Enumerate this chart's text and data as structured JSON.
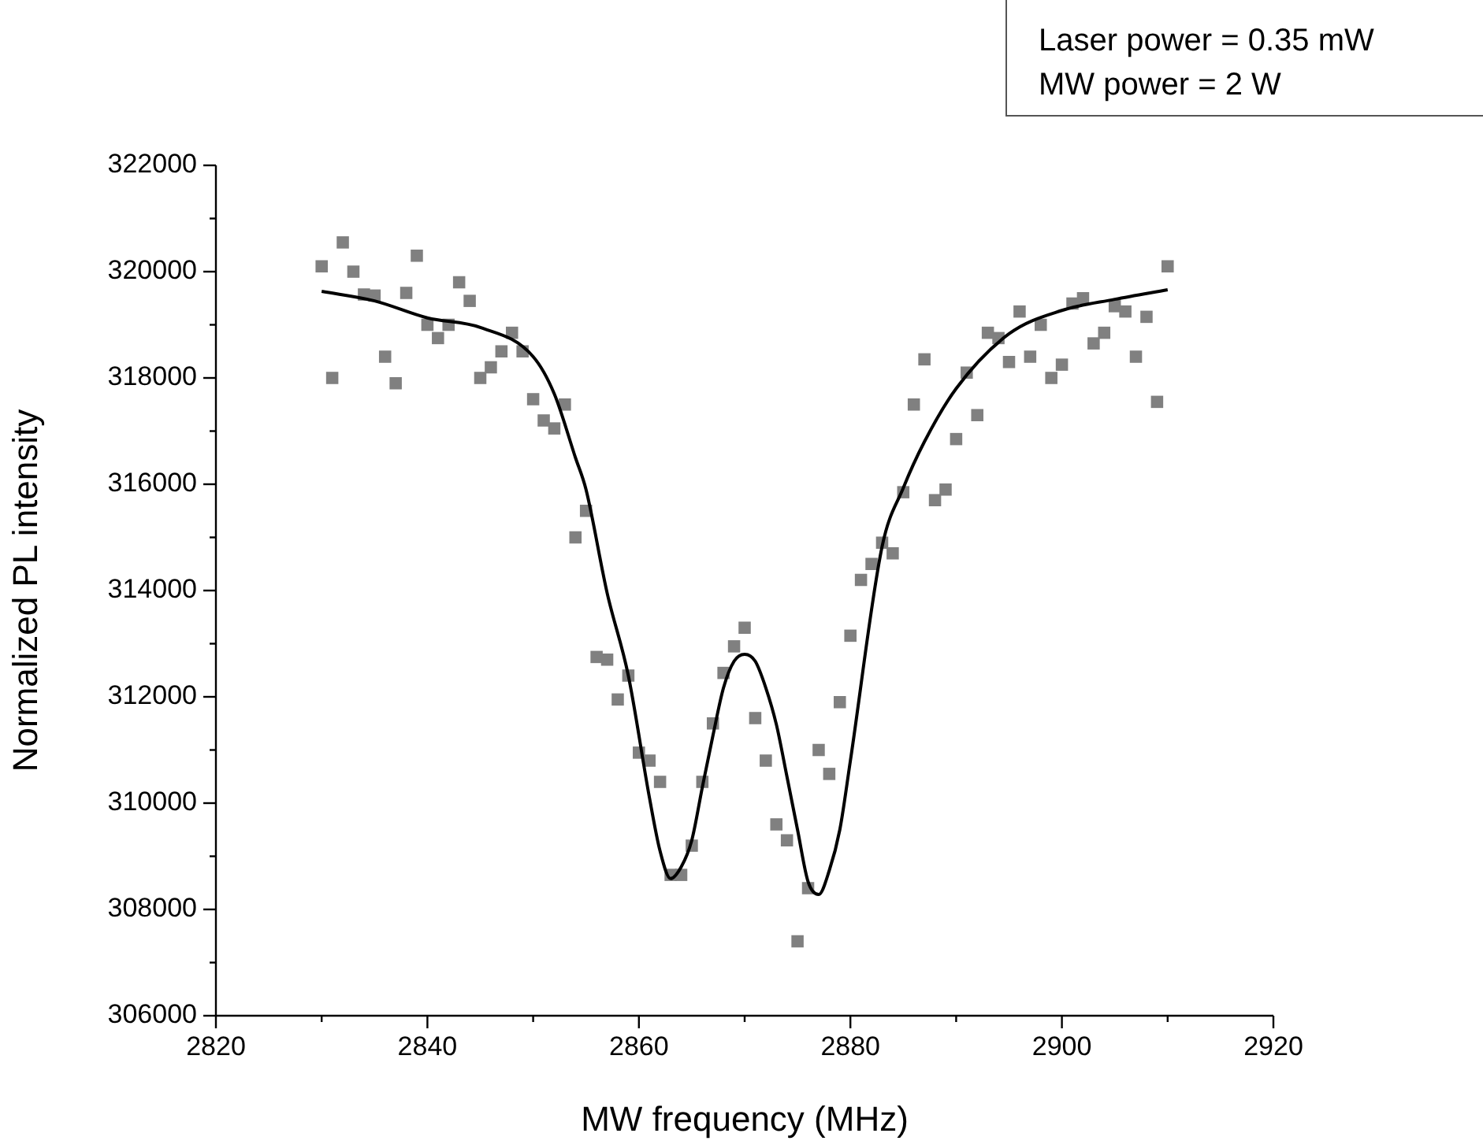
{
  "chart_data": {
    "type": "scatter",
    "xlabel": "MW frequency (MHz)",
    "ylabel": "Normalized PL intensity",
    "annotations": [
      "Laser power = 0.35 mW",
      "MW power = 2 W"
    ],
    "xlim": [
      2820,
      2920
    ],
    "ylim": [
      306000,
      322000
    ],
    "xticks": [
      2820,
      {
        "value": 2830,
        "label": null
      },
      2840,
      {
        "value": 2850,
        "label": null
      },
      2860,
      {
        "value": 2870,
        "label": null
      },
      2880,
      {
        "value": 2890,
        "label": null
      },
      2900,
      {
        "value": 2910,
        "label": null
      },
      2920
    ],
    "yticks": [
      306000,
      {
        "value": 307000,
        "label": null
      },
      308000,
      {
        "value": 309000,
        "label": null
      },
      310000,
      {
        "value": 311000,
        "label": null
      },
      312000,
      {
        "value": 313000,
        "label": null
      },
      314000,
      {
        "value": 315000,
        "label": null
      },
      316000,
      {
        "value": 317000,
        "label": null
      },
      318000,
      {
        "value": 319000,
        "label": null
      },
      320000,
      {
        "value": 321000,
        "label": null
      },
      322000
    ],
    "grid": false,
    "legend": false,
    "marker": "square",
    "x": [
      2830,
      2831,
      2832,
      2833,
      2834,
      2835,
      2836,
      2837,
      2838,
      2839,
      2840,
      2841,
      2842,
      2843,
      2844,
      2845,
      2846,
      2847,
      2848,
      2849,
      2850,
      2851,
      2852,
      2853,
      2854,
      2855,
      2856,
      2857,
      2858,
      2859,
      2860,
      2861,
      2862,
      2863,
      2864,
      2865,
      2866,
      2867,
      2868,
      2869,
      2870,
      2871,
      2872,
      2873,
      2874,
      2875,
      2876,
      2877,
      2878,
      2879,
      2880,
      2881,
      2882,
      2883,
      2884,
      2885,
      2886,
      2887,
      2888,
      2889,
      2890,
      2891,
      2892,
      2893,
      2894,
      2895,
      2896,
      2897,
      2898,
      2899,
      2900,
      2901,
      2902,
      2903,
      2904,
      2905,
      2906,
      2907,
      2908,
      2909,
      2910
    ],
    "series": [
      {
        "color": "#808080",
        "values": [
          320100,
          318000,
          320550,
          320000,
          319570,
          319550,
          318400,
          317900,
          319600,
          320300,
          319000,
          318750,
          319000,
          319800,
          319450,
          318000,
          318200,
          318500,
          318850,
          318500,
          317600,
          317200,
          317050,
          317500,
          315000,
          315500,
          312750,
          312700,
          311950,
          312400,
          310950,
          310800,
          310400,
          308650,
          308650,
          309200,
          310400,
          311500,
          312450,
          312950,
          313300,
          311600,
          310800,
          309600,
          309300,
          307400,
          308400,
          311000,
          310550,
          311900,
          313150,
          314200,
          314500,
          314900,
          314700,
          315850,
          317500,
          318350,
          315700,
          315900,
          316850,
          318100,
          317300,
          318850,
          318750,
          318300,
          319250,
          318400,
          319000,
          318000,
          318250,
          319400,
          319500,
          318650,
          318850,
          319350,
          319250,
          318400,
          319150,
          317550,
          320100
        ]
      },
      {
        "type": "line",
        "color": "#000000",
        "marker": "none",
        "x": [
          2830,
          2835,
          2840,
          2845,
          2850,
          2852,
          2854,
          2855,
          2857,
          2859,
          2861,
          2862,
          2863,
          2864,
          2865,
          2866,
          2867,
          2868,
          2869,
          2870,
          2871,
          2872,
          2873,
          2874,
          2875,
          2876,
          2877,
          2878,
          2879,
          2880,
          2883,
          2885,
          2887,
          2890,
          2895,
          2900,
          2905,
          2910
        ],
        "values": [
          319630,
          319450,
          319130,
          318950,
          318400,
          317700,
          316500,
          315900,
          313950,
          312400,
          310100,
          309100,
          308580,
          308800,
          309300,
          310300,
          311270,
          312170,
          312670,
          312800,
          312670,
          312170,
          311480,
          310500,
          309500,
          308520,
          308280,
          308730,
          309500,
          310800,
          314830,
          315930,
          316800,
          317800,
          318830,
          319270,
          319480,
          319660
        ]
      }
    ]
  }
}
